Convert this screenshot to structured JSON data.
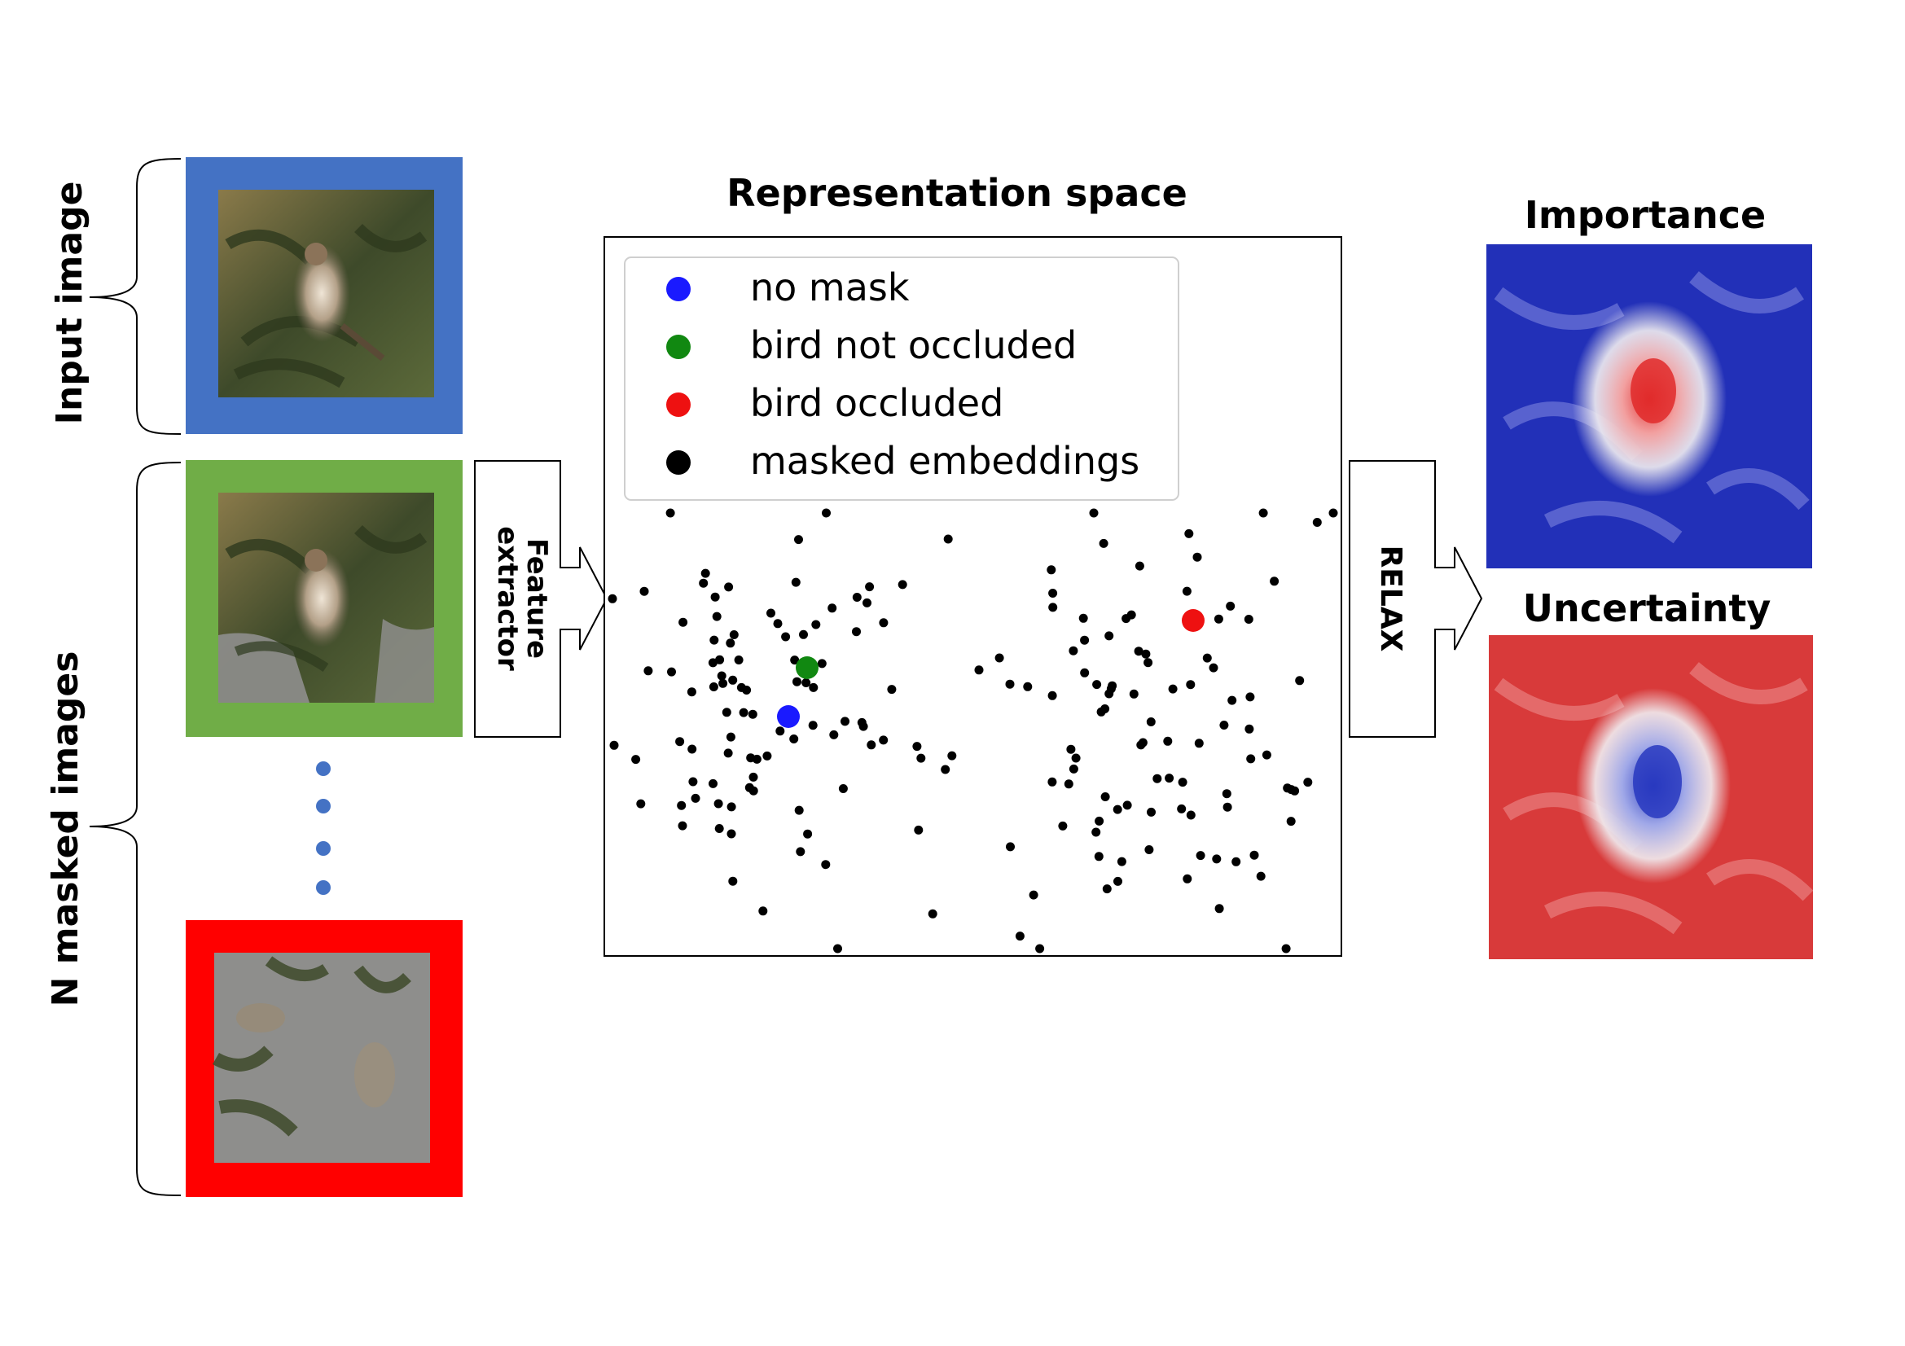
{
  "labels": {
    "input_image": "Input image",
    "masked_images": "N masked images",
    "feature_extractor_line1": "Feature",
    "feature_extractor_line2": "extractor",
    "relax": "RELAX",
    "representation_title": "Representation space",
    "importance": "Importance",
    "uncertainty": "Uncertainty"
  },
  "legend": [
    {
      "label": "no mask",
      "color": "#1a1aff"
    },
    {
      "label": "bird not occluded",
      "color": "#118811"
    },
    {
      "label": "bird occluded",
      "color": "#ee1111"
    },
    {
      "label": "masked embeddings",
      "color": "#000000"
    }
  ],
  "colors": {
    "input_frame": "#4472c4",
    "not_occluded_frame": "#70ad47",
    "occluded_frame": "#ff0000",
    "dots": "#4472c4",
    "importance_map": "#2230b8",
    "uncertainty_map": "#d83a3a"
  },
  "icons": [
    "bird-photo",
    "masked-bird-photo",
    "importance-heatmap",
    "uncertainty-heatmap"
  ]
}
